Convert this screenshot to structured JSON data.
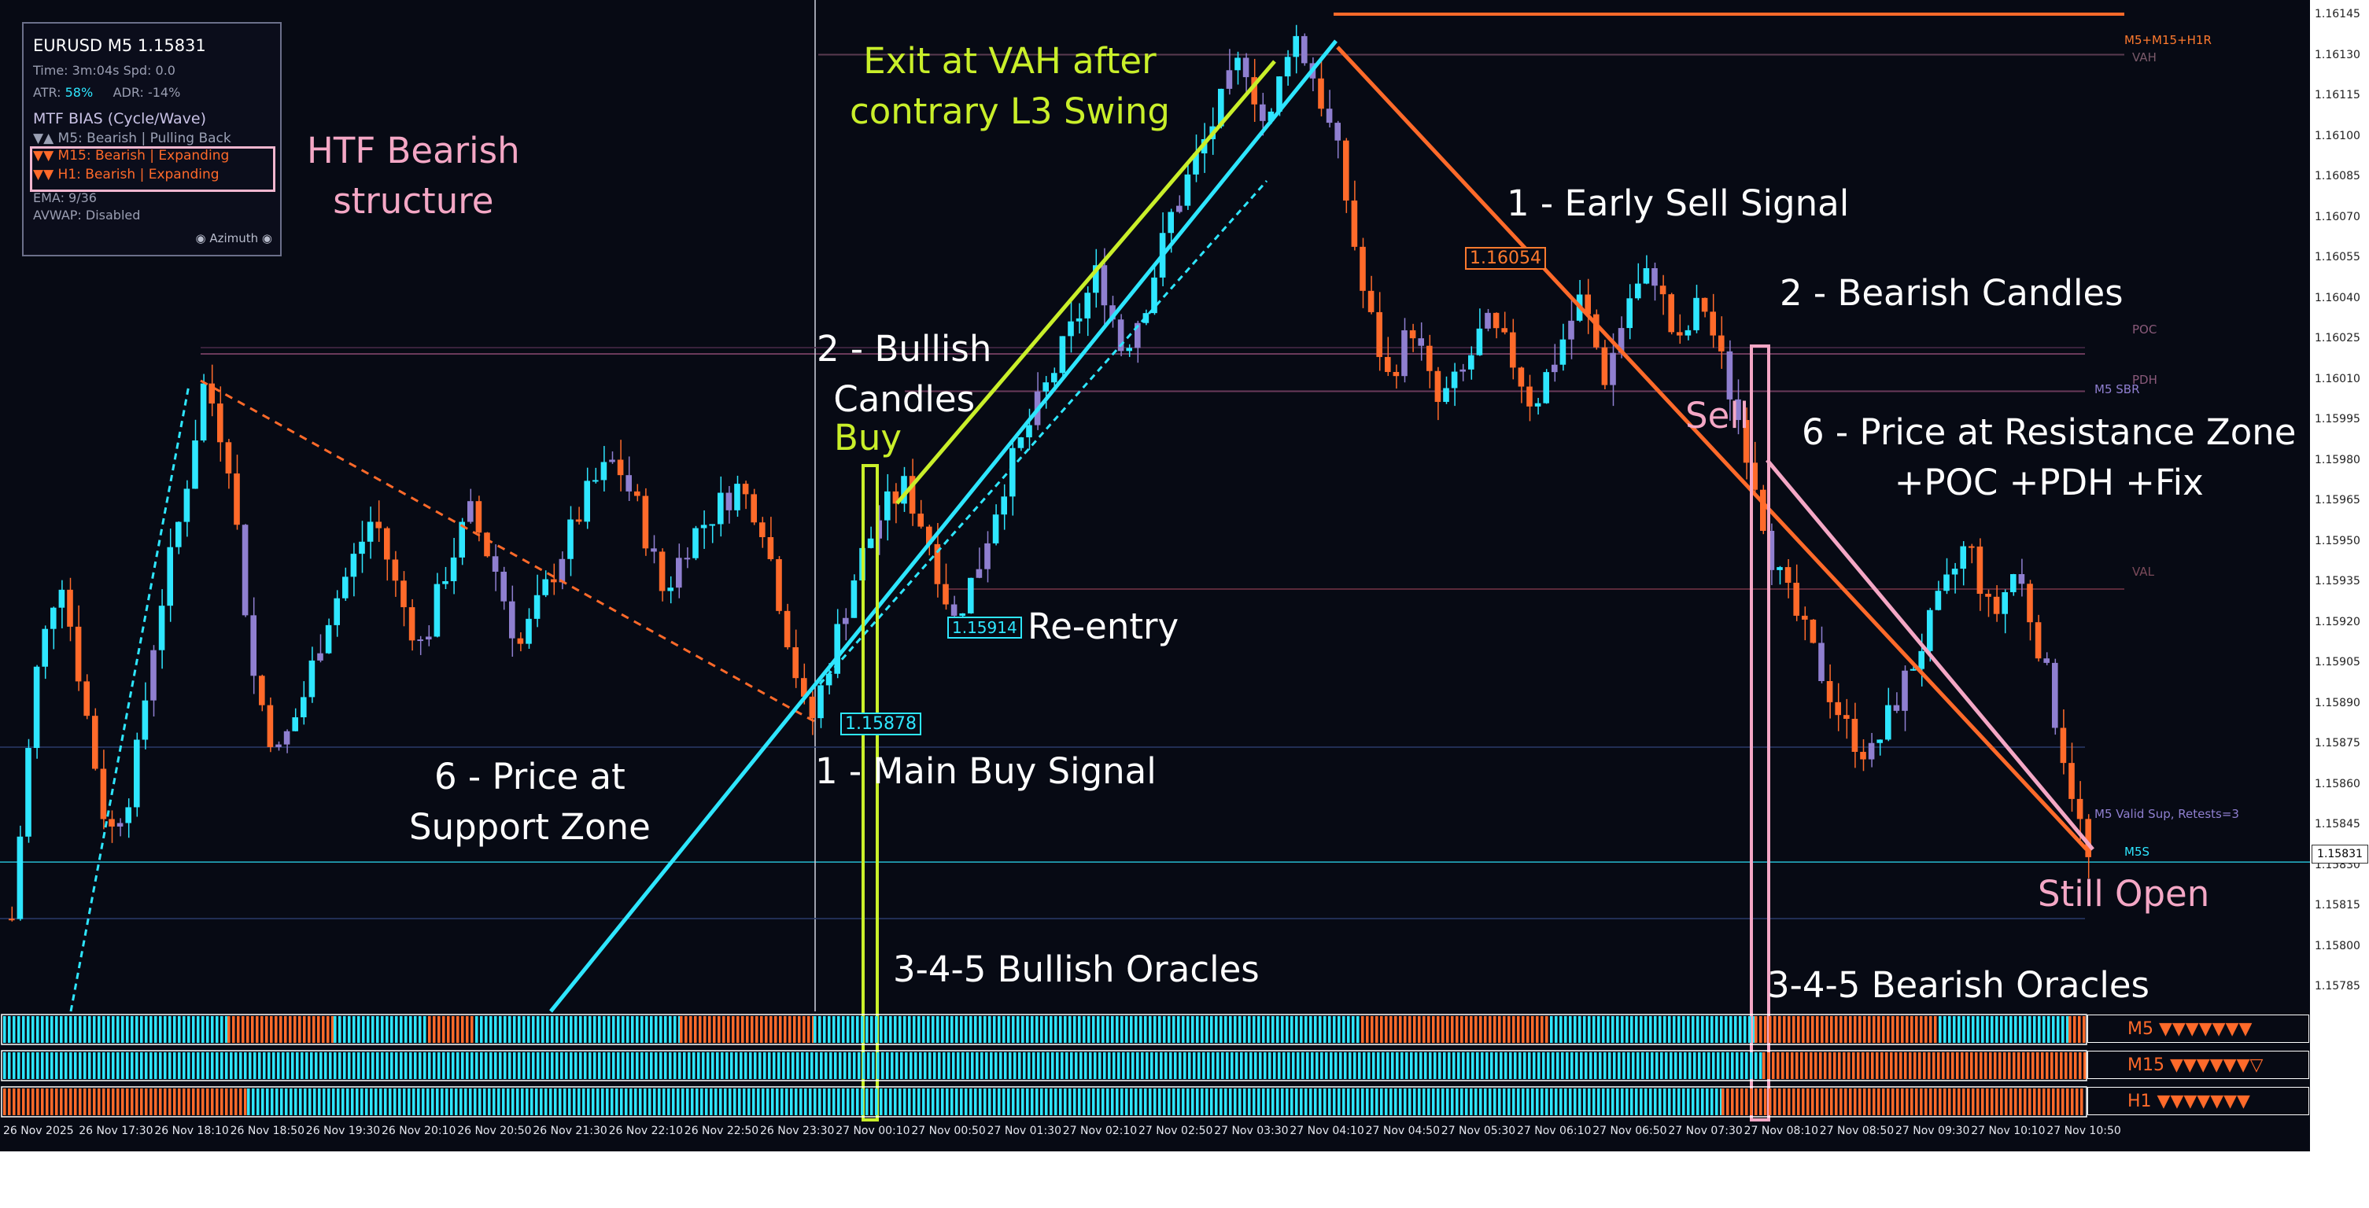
{
  "window": {
    "symbol": "EURUSD",
    "timeframe": "M5",
    "price": "1.15831"
  },
  "info_panel": {
    "title": "EURUSD M5 1.15831",
    "time_line": "Time: 3m:04s    Spd: 0.0",
    "atr_label": "ATR:",
    "atr_value": "58%",
    "adr_label": "ADR: -14%",
    "bias_header": "MTF BIAS (Cycle/Wave)",
    "m5_line": "▼▲ M5: Bearish | Pulling Back",
    "m15_line": "▼▼ M15: Bearish | Expanding",
    "h1_line": "▼▼ H1: Bearish | Expanding",
    "ema_line": "EMA: 9/36",
    "avwap_line": "AVWAP: Disabled",
    "footer": "◉ Azimuth ◉"
  },
  "annotations": {
    "htf_bearish": "HTF Bearish\nstructure",
    "exit_vah": "Exit at VAH after\ncontrary L3 Swing",
    "bullish_candles": "2 - Bullish\nCandles",
    "buy": "Buy",
    "early_sell": "1 - Early Sell Signal",
    "bearish_candles": "2 - Bearish Candles",
    "sell": "Sell",
    "resistance_zone": "6 - Price at Resistance Zone\n+POC +PDH +Fix",
    "re_entry": "Re-entry",
    "main_buy": "1 - Main Buy Signal",
    "support_zone": "6 - Price at\nSupport Zone",
    "still_open": "Still Open",
    "bullish_oracles": "3-4-5 Bullish Oracles",
    "bearish_oracles": "3-4-5 Bearish Oracles"
  },
  "price_tags": {
    "main_buy": "1.15878",
    "re_entry": "1.15914",
    "early_sell": "1.16054",
    "current": "1.15831"
  },
  "level_labels": {
    "mtf": "M5+M15+H1R",
    "vah": "VAH",
    "poc": "POC",
    "pdh": "PDH",
    "m5_sbr": "M5 SBR",
    "val": "VAL",
    "m5_valid_sup": "M5 Valid Sup, Retests=3",
    "m5s": "M5S"
  },
  "oracle_rows": [
    {
      "label": "M5 ▼▼▼▼▼▼▼"
    },
    {
      "label": "M15 ▼▼▼▼▼▼▽"
    },
    {
      "label": "H1 ▼▼▼▼▼▼▼"
    }
  ],
  "colors": {
    "background": "#070a14",
    "bull": "#2ee6ff",
    "bear": "#ff6a2a",
    "neutral": "#8f7fd0",
    "lime": "#c9ef2a",
    "pink": "#f4a7c5"
  },
  "chart_data": {
    "type": "candlestick",
    "y_ticks": [
      "1.16145",
      "1.16130",
      "1.16115",
      "1.16100",
      "1.16085",
      "1.16070",
      "1.16055",
      "1.16040",
      "1.16025",
      "1.16010",
      "1.15995",
      "1.15980",
      "1.15965",
      "1.15950",
      "1.15935",
      "1.15920",
      "1.15905",
      "1.15890",
      "1.15875",
      "1.15860",
      "1.15845",
      "1.15830",
      "1.15815",
      "1.15800",
      "1.15785"
    ],
    "ylim": [
      1.1578,
      1.1615
    ],
    "x_ticks": [
      "26 Nov 2025",
      "26 Nov 17:30",
      "26 Nov 18:10",
      "26 Nov 18:50",
      "26 Nov 19:30",
      "26 Nov 20:10",
      "26 Nov 20:50",
      "26 Nov 21:30",
      "26 Nov 22:10",
      "26 Nov 22:50",
      "26 Nov 23:30",
      "27 Nov 00:10",
      "27 Nov 00:50",
      "27 Nov 01:30",
      "27 Nov 02:10",
      "27 Nov 02:50",
      "27 Nov 03:30",
      "27 Nov 04:10",
      "27 Nov 04:50",
      "27 Nov 05:30",
      "27 Nov 06:10",
      "27 Nov 06:50",
      "27 Nov 07:30",
      "27 Nov 08:10",
      "27 Nov 08:50",
      "27 Nov 09:30",
      "27 Nov 10:10",
      "27 Nov 10:50"
    ],
    "levels": {
      "mtf_resistance": 1.16145,
      "vah": 1.1613,
      "poc": 1.16025,
      "pdh": 1.1601,
      "val": 1.15935,
      "m5_support": 1.15831
    },
    "close_path": [
      1.1581,
      1.159,
      1.1594,
      1.1589,
      1.1584,
      1.1586,
      1.1592,
      1.1596,
      1.1601,
      1.1598,
      1.159,
      1.1587,
      1.1589,
      1.1592,
      1.1594,
      1.1596,
      1.1593,
      1.1591,
      1.1594,
      1.1596,
      1.1594,
      1.1591,
      1.1593,
      1.1595,
      1.1597,
      1.1598,
      1.1596,
      1.1593,
      1.1595,
      1.1596,
      1.1597,
      1.1596,
      1.1592,
      1.1588,
      1.1591,
      1.1594,
      1.1596,
      1.1597,
      1.1595,
      1.1592,
      1.1594,
      1.1597,
      1.1599,
      1.1601,
      1.1603,
      1.1605,
      1.1602,
      1.1604,
      1.1607,
      1.1609,
      1.1611,
      1.1613,
      1.161,
      1.1614,
      1.1612,
      1.1609,
      1.1604,
      1.1601,
      1.1603,
      1.16,
      1.1601,
      1.1603,
      1.1602,
      1.16,
      1.1602,
      1.1604,
      1.1601,
      1.1604,
      1.1605,
      1.1602,
      1.1604,
      1.1601,
      1.1598,
      1.1594,
      1.1592,
      1.159,
      1.1588,
      1.1587,
      1.1589,
      1.1591,
      1.1593,
      1.1595,
      1.1592,
      1.1594,
      1.1591,
      1.1587,
      1.15831
    ]
  }
}
